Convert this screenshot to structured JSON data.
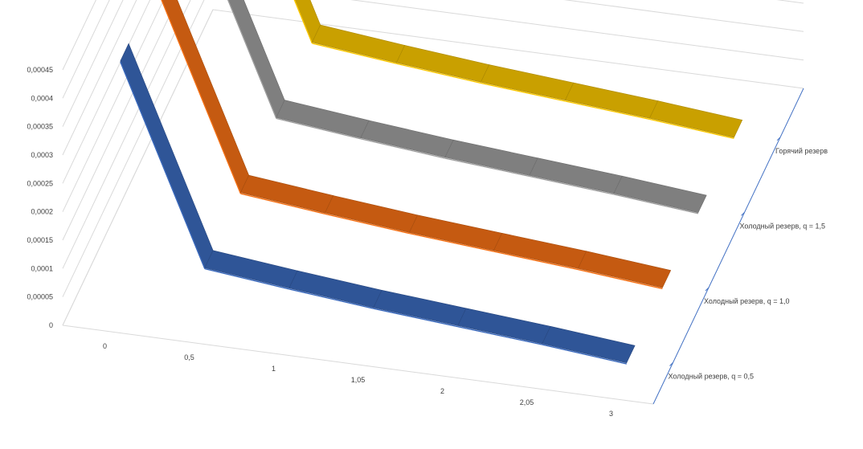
{
  "chart_data": {
    "type": "line",
    "subtype": "3d-line",
    "title": "",
    "categories": [
      "0",
      "0,5",
      "1",
      "1,05",
      "2",
      "2,05",
      "3"
    ],
    "y_ticks": [
      "0",
      "0,00005",
      "0,0001",
      "0,00015",
      "0,0002",
      "0,00025",
      "0,0003",
      "0,00035",
      "0,0004",
      "0,00045"
    ],
    "ylim": [
      0,
      0.00045
    ],
    "grid": true,
    "series": [
      {
        "name": "Холодный резерв, q = 0,5",
        "color": "#2F5597",
        "values": [
          0.000418,
          7.35e-05,
          5.75e-05,
          4.3e-05,
          3.1e-05,
          1.9e-05,
          5e-06
        ]
      },
      {
        "name": "Холодный резерв, q = 1,0",
        "color": "#C55A11",
        "values": [
          0.000418,
          7.35e-05,
          5.75e-05,
          4.3e-05,
          3.1e-05,
          1.9e-05,
          5e-06
        ]
      },
      {
        "name": "Холодный резерв, q = 1,5",
        "color": "#7F7F7F",
        "values": [
          0.000418,
          7.35e-05,
          5.75e-05,
          4.3e-05,
          3.1e-05,
          1.9e-05,
          5e-06
        ]
      },
      {
        "name": "Горячий резерв",
        "color": "#C9A000",
        "values": [
          0.000418,
          7.35e-05,
          5.75e-05,
          4.3e-05,
          3.1e-05,
          1.9e-05,
          5e-06
        ]
      }
    ]
  }
}
